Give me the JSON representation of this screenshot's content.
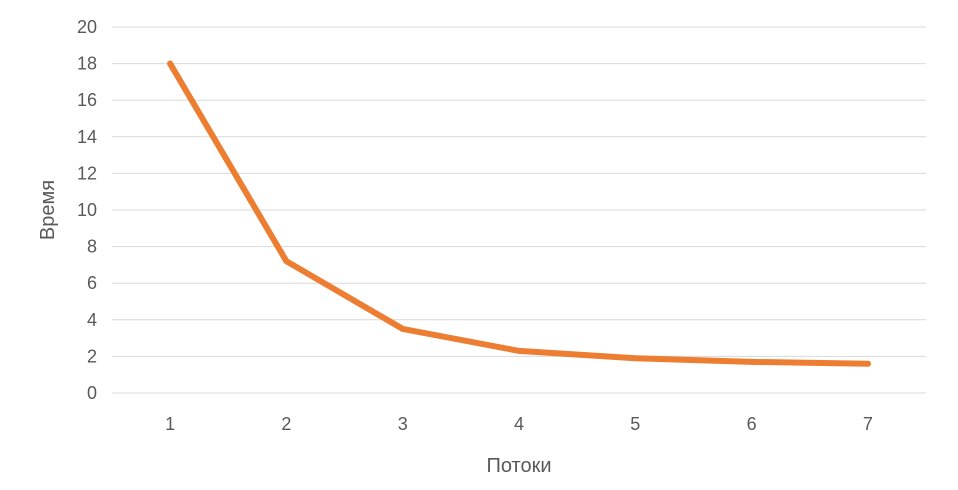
{
  "chart_data": {
    "type": "line",
    "title": "",
    "xlabel": "Потоки",
    "ylabel": "Время",
    "categories": [
      "1",
      "2",
      "3",
      "4",
      "5",
      "6",
      "7"
    ],
    "series": [
      {
        "name": "Время",
        "color": "#ed7d31",
        "values": [
          18.0,
          7.2,
          3.5,
          2.3,
          1.9,
          1.7,
          1.6
        ]
      }
    ],
    "ylim": [
      0,
      20
    ],
    "yticks": [
      "0",
      "2",
      "4",
      "6",
      "8",
      "10",
      "12",
      "14",
      "16",
      "18",
      "20"
    ],
    "grid": true,
    "legend": "none"
  }
}
